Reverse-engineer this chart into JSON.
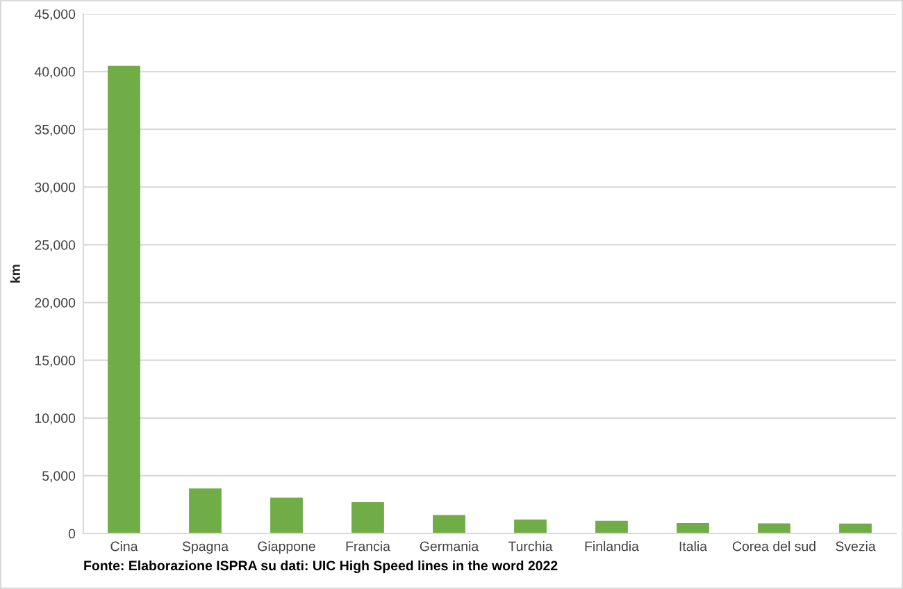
{
  "chart_data": {
    "type": "bar",
    "ylabel": "km",
    "categories": [
      "Cina",
      "Spagna",
      "Giappone",
      "Francia",
      "Germania",
      "Turchia",
      "Finlandia",
      "Italia",
      "Corea del sud",
      "Svezia"
    ],
    "values": [
      40500,
      3900,
      3100,
      2700,
      1600,
      1200,
      1100,
      900,
      870,
      860
    ],
    "color": "#70ad47",
    "ylim": [
      0,
      45000
    ],
    "yticks": [
      {
        "value": 0,
        "label": "0"
      },
      {
        "value": 5000,
        "label": "5,000"
      },
      {
        "value": 10000,
        "label": "10,000"
      },
      {
        "value": 15000,
        "label": "15,000"
      },
      {
        "value": 20000,
        "label": "20,000"
      },
      {
        "value": 25000,
        "label": "25,000"
      },
      {
        "value": 30000,
        "label": "30,000"
      },
      {
        "value": 35000,
        "label": "35,000"
      },
      {
        "value": 40000,
        "label": "40,000"
      },
      {
        "value": 45000,
        "label": "45,000"
      }
    ],
    "grid": "y",
    "annotations": [
      "Fonte: Elaborazione ISPRA su dati: UIC High Speed lines in the word 2022"
    ]
  }
}
